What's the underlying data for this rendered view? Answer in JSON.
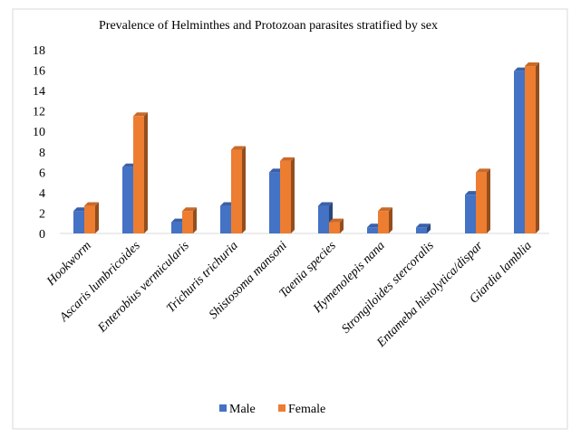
{
  "chart_data": {
    "type": "bar",
    "title": "Prevalence  of Helminthes  and Protozoan parasites stratified  by sex",
    "xlabel": "",
    "ylabel": "",
    "ylim": [
      0,
      18
    ],
    "yticks": [
      0,
      2,
      4,
      6,
      8,
      10,
      12,
      14,
      16,
      18
    ],
    "grid": false,
    "legend_position": "bottom",
    "categories": [
      "Hookworm",
      "Ascaris lumbricoides",
      "Enterobius vermicularis",
      "Trichuris trichuria",
      "Shistosoma mansoni",
      "Taenia species",
      "Hymenolepis nana",
      "Strongiloides stercoralis",
      "Entameba histolytica/dispar",
      "Giardia lamblia"
    ],
    "series": [
      {
        "name": "Male",
        "color": "#4472c4",
        "values": [
          2.2,
          6.5,
          1.1,
          2.7,
          6.0,
          2.7,
          0.6,
          0.6,
          3.8,
          15.9
        ]
      },
      {
        "name": "Female",
        "color": "#ed7d31",
        "values": [
          2.7,
          11.5,
          2.2,
          8.2,
          7.1,
          1.1,
          2.2,
          0.0,
          6.0,
          16.4
        ]
      }
    ]
  }
}
